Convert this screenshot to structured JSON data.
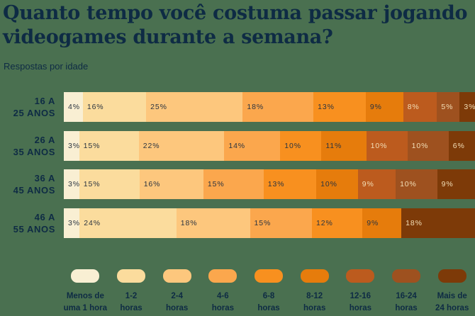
{
  "header": {
    "title_lines": [
      "Quanto tempo você costuma passar jogando",
      "videogames durante a semana?"
    ],
    "subtitle": "Respostas por idade"
  },
  "colors": {
    "background": "#4A7050",
    "heading_text": "#0E2B44",
    "value_text_dark": "#2B3440",
    "value_text_light": "#F3DFB7"
  },
  "chart_data": {
    "type": "bar",
    "stacked": true,
    "orientation": "horizontal",
    "value_unit": "%",
    "title": "Quanto tempo você costuma passar jogando videogames durante a semana?",
    "subtitle": "Respostas por idade",
    "legend_position": "bottom",
    "categories": [
      [
        "16 A",
        "25 ANOS"
      ],
      [
        "26 A",
        "35 ANOS"
      ],
      [
        "36 A",
        "45 ANOS"
      ],
      [
        "46 A",
        "55 ANOS"
      ]
    ],
    "series": [
      {
        "name": "Menos de uma 1 hora",
        "label_lines": [
          "Menos de",
          "uma 1 hora"
        ],
        "color": "#F9EFD3",
        "label_color": "dark",
        "values": [
          4,
          3,
          3,
          3
        ]
      },
      {
        "name": "1-2 horas",
        "label_lines": [
          "1-2",
          "horas"
        ],
        "color": "#FBDC9D",
        "label_color": "dark",
        "values": [
          16,
          15,
          15,
          24
        ]
      },
      {
        "name": "2-4 horas",
        "label_lines": [
          "2-4",
          "horas"
        ],
        "color": "#FDC77D",
        "label_color": "dark",
        "values": [
          25,
          22,
          16,
          18
        ]
      },
      {
        "name": "4-6 horas",
        "label_lines": [
          "4-6",
          "horas"
        ],
        "color": "#FBA74D",
        "label_color": "dark",
        "values": [
          18,
          14,
          15,
          15
        ]
      },
      {
        "name": "6-8 horas",
        "label_lines": [
          "6-8",
          "horas"
        ],
        "color": "#F8901F",
        "label_color": "dark",
        "values": [
          13,
          10,
          13,
          12
        ]
      },
      {
        "name": "8-12 horas",
        "label_lines": [
          "8-12",
          "horas"
        ],
        "color": "#E67C0C",
        "label_color": "dark",
        "values": [
          9,
          11,
          10,
          9
        ]
      },
      {
        "name": "12-16 horas",
        "label_lines": [
          "12-16",
          "horas"
        ],
        "color": "#BC5B1E",
        "label_color": "light",
        "values": [
          8,
          10,
          9,
          null
        ]
      },
      {
        "name": "16-24 horas",
        "label_lines": [
          "16-24",
          "horas"
        ],
        "color": "#9E511F",
        "label_color": "light",
        "values": [
          5,
          10,
          10,
          null
        ]
      },
      {
        "name": "Mais de 24 horas",
        "label_lines": [
          "Mais de",
          "24 horas"
        ],
        "color": "#7D3A08",
        "label_color": "light",
        "values": [
          3,
          6,
          9,
          18
        ]
      }
    ]
  }
}
